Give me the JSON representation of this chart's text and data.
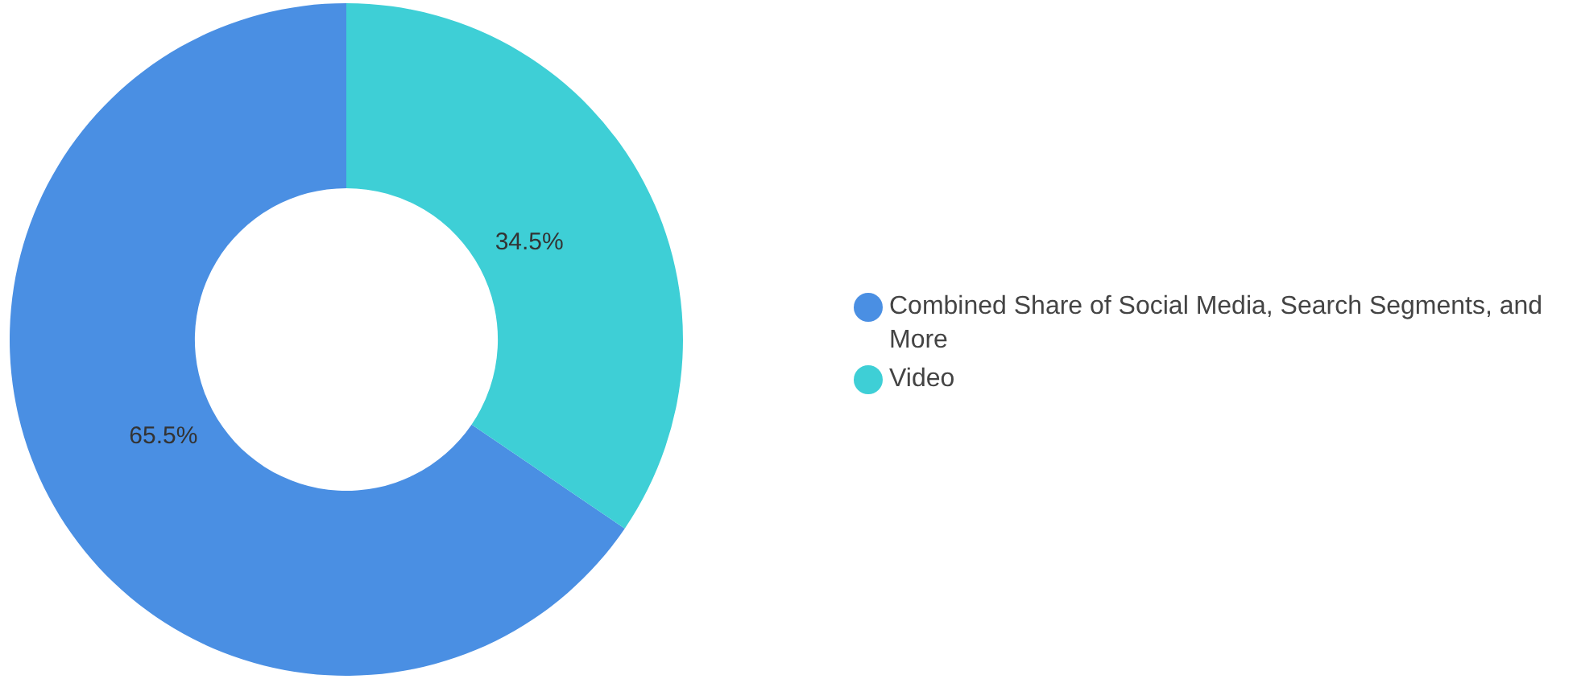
{
  "chart_data": {
    "type": "donut",
    "categories": [
      "Combined Share of Social Media, Search Segments, and More",
      "Video"
    ],
    "values": [
      65.5,
      34.5
    ],
    "value_labels": [
      "65.5%",
      "34.5%"
    ],
    "colors": [
      "#4a8fe3",
      "#3ecfd6"
    ],
    "legend": "right"
  }
}
